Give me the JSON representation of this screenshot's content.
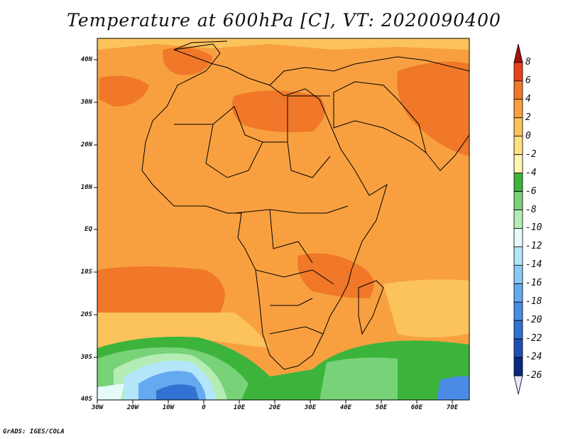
{
  "title": "Temperature at 600hPa [C], VT: 2020090400",
  "credit": "GrADS: IGES/COLA",
  "lat_labels": [
    "40N",
    "30N",
    "20N",
    "10N",
    "EQ",
    "10S",
    "20S",
    "30S",
    "40S"
  ],
  "lon_labels": [
    "30W",
    "20W",
    "10W",
    "0",
    "10E",
    "20E",
    "30E",
    "40E",
    "50E",
    "60E",
    "70E"
  ],
  "colorbar": {
    "labels": [
      "8",
      "6",
      "4",
      "2",
      "0",
      "-2",
      "-4",
      "-6",
      "-8",
      "-10",
      "-12",
      "-14",
      "-16",
      "-18",
      "-20",
      "-22",
      "-24",
      "-26"
    ],
    "colors": [
      "#a0140a",
      "#e8421c",
      "#f07828",
      "#f8a040",
      "#fcc25c",
      "#fde080",
      "#fff4b0",
      "#3cb43c",
      "#78d278",
      "#b4ecb4",
      "#e6fafa",
      "#b4e6fa",
      "#8cc8f5",
      "#64aaf0",
      "#4b8ce6",
      "#3272d2",
      "#1e50b4",
      "#0a2882",
      "#e6e6ff"
    ]
  }
}
